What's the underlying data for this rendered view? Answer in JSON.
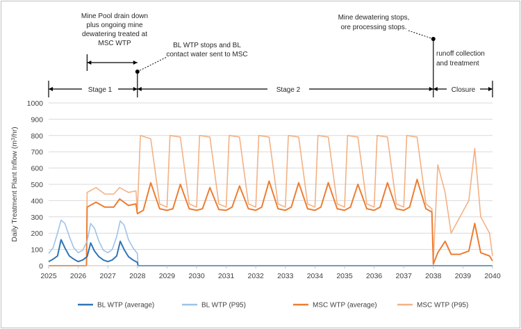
{
  "chart_data": {
    "type": "line",
    "ylabel_main": "Daily Treatment Plant Inflow (m",
    "ylabel_sup": "3",
    "ylabel_end": "/hr)",
    "xlim": [
      2025,
      2040
    ],
    "ylim": [
      0,
      1000
    ],
    "x_ticks": [
      "2025",
      "2026",
      "2027",
      "2028",
      "2029",
      "2030",
      "2031",
      "2032",
      "2033",
      "2034",
      "2035",
      "2036",
      "2037",
      "2038",
      "2039",
      "2040"
    ],
    "y_ticks": [
      "0",
      "100",
      "200",
      "300",
      "400",
      "500",
      "600",
      "700",
      "800",
      "900",
      "1000"
    ],
    "grid": true,
    "legend_position": "bottom",
    "series": [
      {
        "name": "BL WTP (average)",
        "color": "#2e75b6",
        "x": [
          2025.0,
          2025.15,
          2025.3,
          2025.42,
          2025.55,
          2025.7,
          2025.85,
          2026.0,
          2026.15,
          2026.3,
          2026.42,
          2026.55,
          2026.7,
          2026.85,
          2027.0,
          2027.15,
          2027.3,
          2027.42,
          2027.55,
          2027.7,
          2027.85,
          2028.0,
          2028.02,
          2040.0
        ],
        "y": [
          25,
          40,
          60,
          160,
          110,
          60,
          40,
          25,
          35,
          55,
          140,
          90,
          55,
          35,
          25,
          35,
          60,
          150,
          100,
          55,
          35,
          20,
          0,
          0
        ]
      },
      {
        "name": "BL WTP (P95)",
        "color": "#9dc3e6",
        "x": [
          2025.0,
          2025.15,
          2025.3,
          2025.42,
          2025.55,
          2025.7,
          2025.85,
          2026.0,
          2026.15,
          2026.3,
          2026.42,
          2026.55,
          2026.7,
          2026.85,
          2027.0,
          2027.15,
          2027.3,
          2027.42,
          2027.55,
          2027.7,
          2027.85,
          2028.0,
          2028.02,
          2040.0
        ],
        "y": [
          75,
          110,
          200,
          280,
          260,
          180,
          110,
          80,
          95,
          150,
          260,
          230,
          150,
          95,
          80,
          100,
          180,
          275,
          250,
          160,
          110,
          75,
          0,
          0
        ]
      },
      {
        "name": "MSC WTP (average)",
        "color": "#ed7d31",
        "x": [
          2025.0,
          2026.28,
          2026.3,
          2026.6,
          2026.9,
          2027.2,
          2027.4,
          2027.7,
          2027.95,
          2028.0,
          2028.2,
          2028.45,
          2028.75,
          2029.0,
          2029.2,
          2029.45,
          2029.75,
          2030.0,
          2030.2,
          2030.45,
          2030.75,
          2031.0,
          2031.2,
          2031.45,
          2031.75,
          2032.0,
          2032.2,
          2032.45,
          2032.75,
          2033.0,
          2033.2,
          2033.45,
          2033.75,
          2034.0,
          2034.2,
          2034.45,
          2034.75,
          2035.0,
          2035.2,
          2035.45,
          2035.75,
          2036.0,
          2036.2,
          2036.45,
          2036.75,
          2037.0,
          2037.2,
          2037.45,
          2037.75,
          2037.95,
          2038.0,
          2038.15,
          2038.4,
          2038.6,
          2038.9,
          2039.2,
          2039.4,
          2039.6,
          2039.9,
          2040.0
        ],
        "y": [
          0,
          0,
          360,
          390,
          360,
          360,
          410,
          370,
          380,
          320,
          340,
          510,
          350,
          340,
          350,
          500,
          350,
          340,
          350,
          480,
          345,
          340,
          360,
          490,
          350,
          340,
          360,
          520,
          350,
          340,
          360,
          510,
          350,
          340,
          360,
          510,
          350,
          340,
          360,
          500,
          350,
          340,
          360,
          510,
          350,
          340,
          360,
          530,
          350,
          330,
          10,
          80,
          150,
          70,
          70,
          90,
          260,
          80,
          60,
          30
        ]
      },
      {
        "name": "MSC WTP (P95)",
        "color": "#f4b183",
        "x": [
          2025.0,
          2026.28,
          2026.3,
          2026.6,
          2026.9,
          2027.2,
          2027.4,
          2027.7,
          2027.95,
          2028.0,
          2028.1,
          2028.45,
          2028.75,
          2029.0,
          2029.1,
          2029.45,
          2029.75,
          2030.0,
          2030.1,
          2030.45,
          2030.75,
          2031.0,
          2031.1,
          2031.45,
          2031.75,
          2032.0,
          2032.1,
          2032.45,
          2032.75,
          2033.0,
          2033.1,
          2033.45,
          2033.75,
          2034.0,
          2034.1,
          2034.45,
          2034.75,
          2035.0,
          2035.1,
          2035.45,
          2035.75,
          2036.0,
          2036.1,
          2036.45,
          2036.75,
          2037.0,
          2037.1,
          2037.45,
          2037.75,
          2037.95,
          2038.0,
          2038.15,
          2038.4,
          2038.6,
          2038.9,
          2039.2,
          2039.4,
          2039.6,
          2039.9,
          2040.0
        ],
        "y": [
          0,
          0,
          450,
          480,
          440,
          440,
          480,
          450,
          460,
          340,
          800,
          780,
          380,
          360,
          800,
          790,
          380,
          360,
          800,
          790,
          380,
          360,
          800,
          790,
          380,
          360,
          800,
          790,
          380,
          360,
          800,
          790,
          380,
          360,
          800,
          790,
          380,
          360,
          800,
          790,
          380,
          360,
          800,
          790,
          380,
          360,
          800,
          790,
          380,
          350,
          30,
          620,
          450,
          200,
          300,
          400,
          720,
          300,
          200,
          60
        ]
      }
    ],
    "annotations": {
      "mine_pool": [
        "Mine Pool drain down",
        "plus ongoing mine",
        "dewatering treated at",
        "MSC WTP"
      ],
      "bl_stop": [
        "BL WTP stops and BL",
        "contact water sent to MSC"
      ],
      "mine_stop": [
        "Mine dewatering stops,",
        "ore processing stops."
      ],
      "runoff": [
        "runoff collection",
        "and treatment"
      ],
      "stage1": "Stage 1",
      "stage2": "Stage 2",
      "closure": "Closure"
    }
  }
}
